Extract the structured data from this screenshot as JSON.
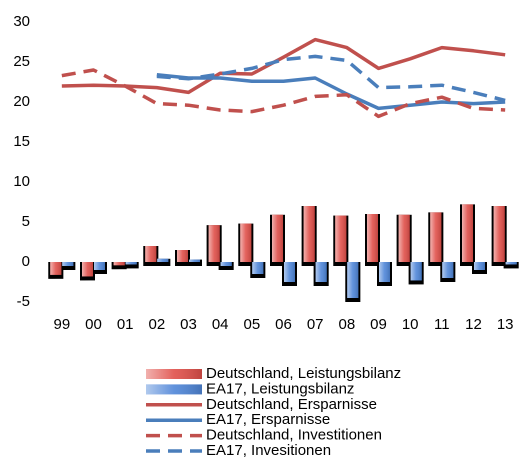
{
  "chart_data": {
    "type": "combo",
    "categories": [
      "99",
      "00",
      "01",
      "02",
      "03",
      "04",
      "05",
      "06",
      "07",
      "08",
      "09",
      "10",
      "11",
      "12",
      "13"
    ],
    "ylim": [
      -5,
      30
    ],
    "yticks": [
      -5,
      0,
      5,
      10,
      15,
      20,
      25,
      30
    ],
    "series": [
      {
        "name": "Deutschland, Leistungsbilanz",
        "type": "bar",
        "color": "#e0504a",
        "values": [
          -1.6,
          -1.8,
          -0.4,
          2.0,
          1.5,
          4.6,
          4.8,
          5.9,
          7.0,
          5.8,
          6.0,
          5.9,
          6.2,
          7.2,
          7.0
        ]
      },
      {
        "name": "EA17, Leistungsbilanz",
        "type": "bar",
        "color": "#4f86d8",
        "values": [
          -0.5,
          -1.0,
          -0.3,
          0.4,
          0.3,
          -0.5,
          -1.5,
          -2.5,
          -2.5,
          -4.5,
          -2.5,
          -2.3,
          -2.0,
          -1.0,
          -0.3
        ]
      },
      {
        "name": "Deutschland, Ersparnisse",
        "type": "line",
        "dashed": false,
        "color": "#c0504d",
        "values": [
          22.0,
          22.1,
          22.0,
          21.8,
          21.2,
          23.6,
          23.5,
          25.6,
          27.8,
          26.8,
          24.2,
          25.4,
          26.8,
          26.4,
          25.9
        ]
      },
      {
        "name": "EA17, Ersparnisse",
        "type": "line",
        "dashed": false,
        "color": "#4a7ebb",
        "values": [
          null,
          null,
          null,
          23.4,
          23.0,
          23.0,
          22.6,
          22.6,
          23.0,
          21.0,
          19.2,
          19.6,
          20.0,
          19.8,
          20.0
        ]
      },
      {
        "name": "Deutschland, Investitionen",
        "type": "line",
        "dashed": true,
        "color": "#c0504d",
        "values": [
          23.3,
          24.0,
          22.0,
          19.8,
          19.6,
          19.0,
          18.8,
          19.6,
          20.7,
          20.9,
          18.2,
          19.8,
          20.6,
          19.2,
          19.0
        ]
      },
      {
        "name": "EA17, Invesitionen",
        "type": "line",
        "dashed": true,
        "color": "#4a7ebb",
        "values": [
          null,
          null,
          null,
          23.2,
          22.9,
          23.5,
          24.2,
          25.3,
          25.7,
          25.2,
          21.8,
          21.9,
          22.1,
          21.2,
          20.2
        ]
      }
    ]
  }
}
